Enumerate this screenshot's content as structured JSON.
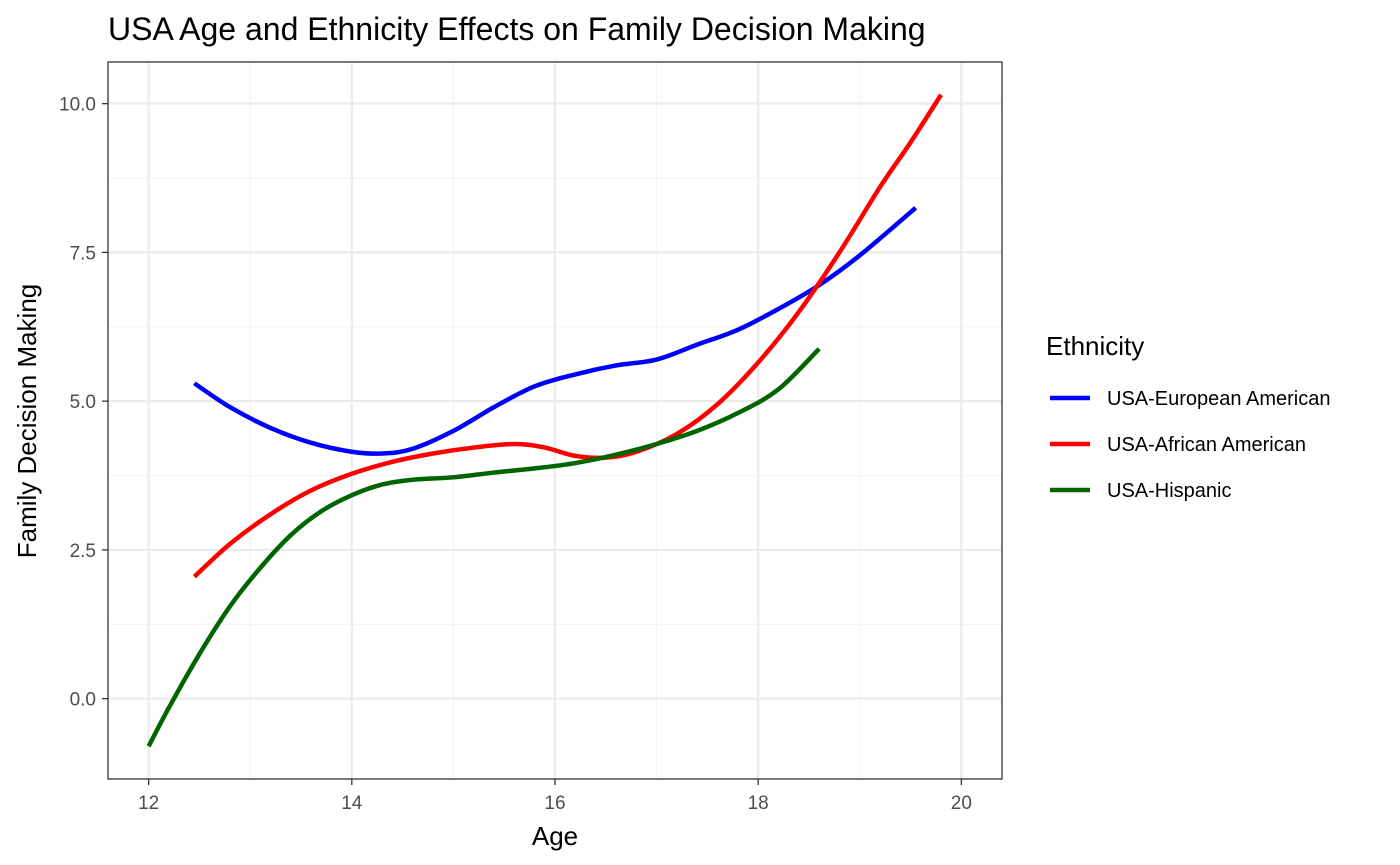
{
  "chart_data": {
    "type": "line",
    "title": "USA Age and Ethnicity Effects on Family Decision Making",
    "xlabel": "Age",
    "ylabel": "Family Decision Making",
    "xlim": [
      11.6,
      20.4
    ],
    "ylim": [
      -1.35,
      10.7
    ],
    "x_ticks": [
      12,
      14,
      16,
      18,
      20
    ],
    "x_tick_labels": [
      "12",
      "14",
      "16",
      "18",
      "20"
    ],
    "y_ticks": [
      0,
      2.5,
      5,
      7.5,
      10
    ],
    "y_tick_labels": [
      "0.0",
      "2.5",
      "5.0",
      "7.5",
      "10.0"
    ],
    "grid": true,
    "legend_title": "Ethnicity",
    "legend_position": "right",
    "series": [
      {
        "name": "USA-European American",
        "color": "#0000ff",
        "x": [
          12.45,
          12.8,
          13.2,
          13.6,
          14.0,
          14.3,
          14.6,
          15.0,
          15.4,
          15.8,
          16.2,
          16.6,
          17.0,
          17.4,
          17.8,
          18.2,
          18.6,
          19.0,
          19.55
        ],
        "y": [
          5.3,
          4.9,
          4.55,
          4.3,
          4.15,
          4.12,
          4.2,
          4.5,
          4.9,
          5.25,
          5.45,
          5.6,
          5.7,
          5.95,
          6.2,
          6.55,
          6.95,
          7.45,
          8.25
        ]
      },
      {
        "name": "USA-African American",
        "color": "#ff0000",
        "x": [
          12.45,
          12.8,
          13.2,
          13.6,
          14.0,
          14.4,
          14.8,
          15.2,
          15.6,
          15.9,
          16.2,
          16.5,
          16.8,
          17.2,
          17.6,
          18.0,
          18.4,
          18.8,
          19.2,
          19.5,
          19.8
        ],
        "y": [
          2.05,
          2.6,
          3.1,
          3.5,
          3.78,
          3.98,
          4.12,
          4.22,
          4.28,
          4.22,
          4.08,
          4.05,
          4.15,
          4.45,
          4.95,
          5.65,
          6.5,
          7.5,
          8.6,
          9.35,
          10.15
        ]
      },
      {
        "name": "USA-Hispanic",
        "color": "#006400",
        "x": [
          12.0,
          12.2,
          12.5,
          12.8,
          13.1,
          13.4,
          13.7,
          14.0,
          14.3,
          14.6,
          15.0,
          15.4,
          15.8,
          16.2,
          16.6,
          17.0,
          17.4,
          17.8,
          18.2,
          18.6
        ],
        "y": [
          -0.8,
          -0.15,
          0.75,
          1.55,
          2.2,
          2.75,
          3.15,
          3.42,
          3.6,
          3.68,
          3.72,
          3.8,
          3.87,
          3.96,
          4.1,
          4.28,
          4.5,
          4.8,
          5.2,
          5.88
        ]
      }
    ]
  }
}
